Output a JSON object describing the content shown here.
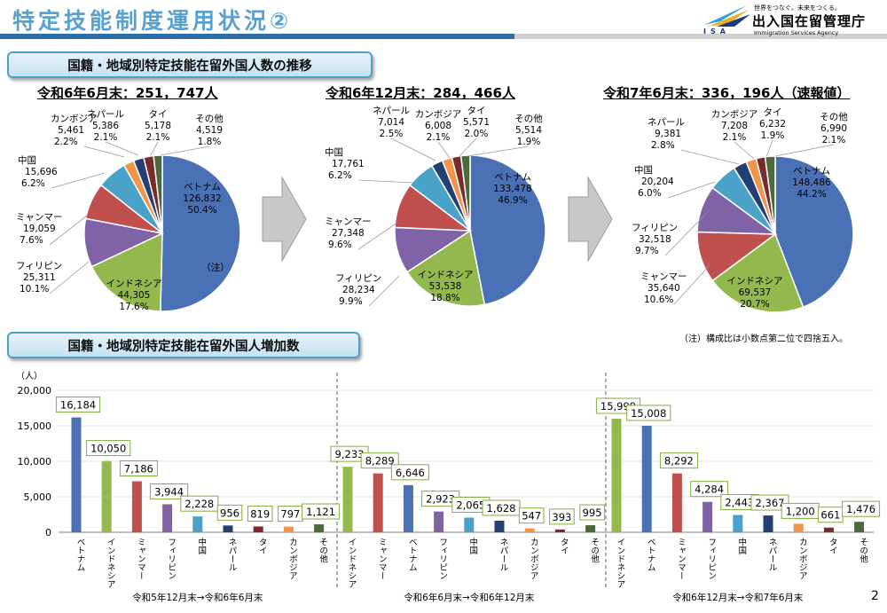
{
  "header": {
    "title": "特定技能制度運用状況②"
  },
  "logo": {
    "slogan": "世界をつなぐ。未来をつくる。",
    "name": "出入国在留管理庁",
    "name_en": "Immigration Services Agency",
    "abbr": "ISA"
  },
  "sections": {
    "pies": "国籍・地域別特定技能在留外国人数の推移",
    "bars": "国籍・地域別特定技能在留外国人増加数"
  },
  "note": "（注）構成比は小数点第二位で四捨五入。",
  "page_number": "2",
  "colors": {
    "vietnam": "#4a71b5",
    "indonesia": "#93b94e",
    "myanmar": "#c0504d",
    "philippines": "#7f63a6",
    "china": "#4aa2c8",
    "nepal": "#243f72",
    "cambodia": "#f0954a",
    "thailand": "#7a2b2b",
    "other": "#4c6a3b"
  },
  "chart_data": [
    {
      "type": "pie",
      "title": "令和6年6月末：251，747人",
      "annotation": "（注）",
      "slices": [
        {
          "label": "ベトナム",
          "value": "126,832",
          "pct": "50.4%",
          "v": 126832
        },
        {
          "label": "インドネシア",
          "value": "44,305",
          "pct": "17.6%",
          "v": 44305
        },
        {
          "label": "フィリピン",
          "value": "25,311",
          "pct": "10.1%",
          "v": 25311
        },
        {
          "label": "ミャンマー",
          "value": "19,059",
          "pct": "7.6%",
          "v": 19059
        },
        {
          "label": "中国",
          "value": "15,696",
          "pct": "6.2%",
          "v": 15696
        },
        {
          "label": "カンボジア",
          "value": "5,461",
          "pct": "2.2%",
          "v": 5461
        },
        {
          "label": "ネパール",
          "value": "5,386",
          "pct": "2.1%",
          "v": 5386
        },
        {
          "label": "タイ",
          "value": "5,178",
          "pct": "2.1%",
          "v": 5178
        },
        {
          "label": "その他",
          "value": "4,519",
          "pct": "1.8%",
          "v": 4519
        }
      ]
    },
    {
      "type": "pie",
      "title": "令和6年12月末：284，466人",
      "slices": [
        {
          "label": "ベトナム",
          "value": "133,478",
          "pct": "46.9%",
          "v": 133478
        },
        {
          "label": "インドネシア",
          "value": "53,538",
          "pct": "18.8%",
          "v": 53538
        },
        {
          "label": "フィリピン",
          "value": "28,234",
          "pct": "9.9%",
          "v": 28234
        },
        {
          "label": "ミャンマー",
          "value": "27,348",
          "pct": "9.6%",
          "v": 27348
        },
        {
          "label": "中国",
          "value": "17,761",
          "pct": "6.2%",
          "v": 17761
        },
        {
          "label": "ネパール",
          "value": "7,014",
          "pct": "2.5%",
          "v": 7014
        },
        {
          "label": "カンボジア",
          "value": "6,008",
          "pct": "2.1%",
          "v": 6008
        },
        {
          "label": "タイ",
          "value": "5,571",
          "pct": "2.0%",
          "v": 5571
        },
        {
          "label": "その他",
          "value": "5,514",
          "pct": "1.9%",
          "v": 5514
        }
      ]
    },
    {
      "type": "pie",
      "title": "令和7年6月末：336，196人（速報値）",
      "slices": [
        {
          "label": "ベトナム",
          "value": "148,486",
          "pct": "44.2%",
          "v": 148486
        },
        {
          "label": "インドネシア",
          "value": "69,537",
          "pct": "20.7%",
          "v": 69537
        },
        {
          "label": "ミャンマー",
          "value": "35,640",
          "pct": "10.6%",
          "v": 35640
        },
        {
          "label": "フィリピン",
          "value": "32,518",
          "pct": "9.7%",
          "v": 32518
        },
        {
          "label": "中国",
          "value": "20,204",
          "pct": "6.0%",
          "v": 20204
        },
        {
          "label": "ネパール",
          "value": "9,381",
          "pct": "2.8%",
          "v": 9381
        },
        {
          "label": "カンボジア",
          "value": "7,208",
          "pct": "2.1%",
          "v": 7208
        },
        {
          "label": "タイ",
          "value": "6,232",
          "pct": "1.9%",
          "v": 6232
        },
        {
          "label": "その他",
          "value": "6,990",
          "pct": "2.1%",
          "v": 6990
        }
      ]
    },
    {
      "type": "bar",
      "ylabel": "（人）",
      "ylim": [
        0,
        20000
      ],
      "yticks": [
        "0",
        "5,000",
        "10,000",
        "15,000",
        "20,000"
      ],
      "groups": [
        {
          "caption": "令和5年12月末→令和6年6月末",
          "categories": [
            "ベトナム",
            "インドネシア",
            "ミャンマー",
            "フィリピン",
            "中国",
            "ネパール",
            "タイ",
            "カンボジア",
            "その他"
          ],
          "values": [
            16184,
            10050,
            7186,
            3944,
            2228,
            956,
            819,
            797,
            1121
          ],
          "labels": [
            "16,184",
            "10,050",
            "7,186",
            "3,944",
            "2,228",
            "956",
            "819",
            "797",
            "1,121"
          ]
        },
        {
          "caption": "令和6年6月末→令和6年12月末",
          "categories": [
            "インドネシア",
            "ミャンマー",
            "ベトナム",
            "フィリピン",
            "中国",
            "ネパール",
            "カンボジア",
            "タイ",
            "その他"
          ],
          "values": [
            9233,
            8289,
            6646,
            2923,
            2065,
            1628,
            547,
            393,
            995
          ],
          "labels": [
            "9,233",
            "8,289",
            "6,646",
            "2,923",
            "2,065",
            "1,628",
            "547",
            "393",
            "995"
          ]
        },
        {
          "caption": "令和6年12月末→令和7年6月末",
          "categories": [
            "インドネシア",
            "ベトナム",
            "ミャンマー",
            "フィリピン",
            "中国",
            "ネパール",
            "カンボジア",
            "タイ",
            "その他"
          ],
          "values": [
            15999,
            15008,
            8292,
            4284,
            2443,
            2367,
            1200,
            661,
            1476
          ],
          "labels": [
            "15,999",
            "15,008",
            "8,292",
            "4,284",
            "2,443",
            "2,367",
            "1,200",
            "661",
            "1,476"
          ]
        }
      ]
    }
  ]
}
